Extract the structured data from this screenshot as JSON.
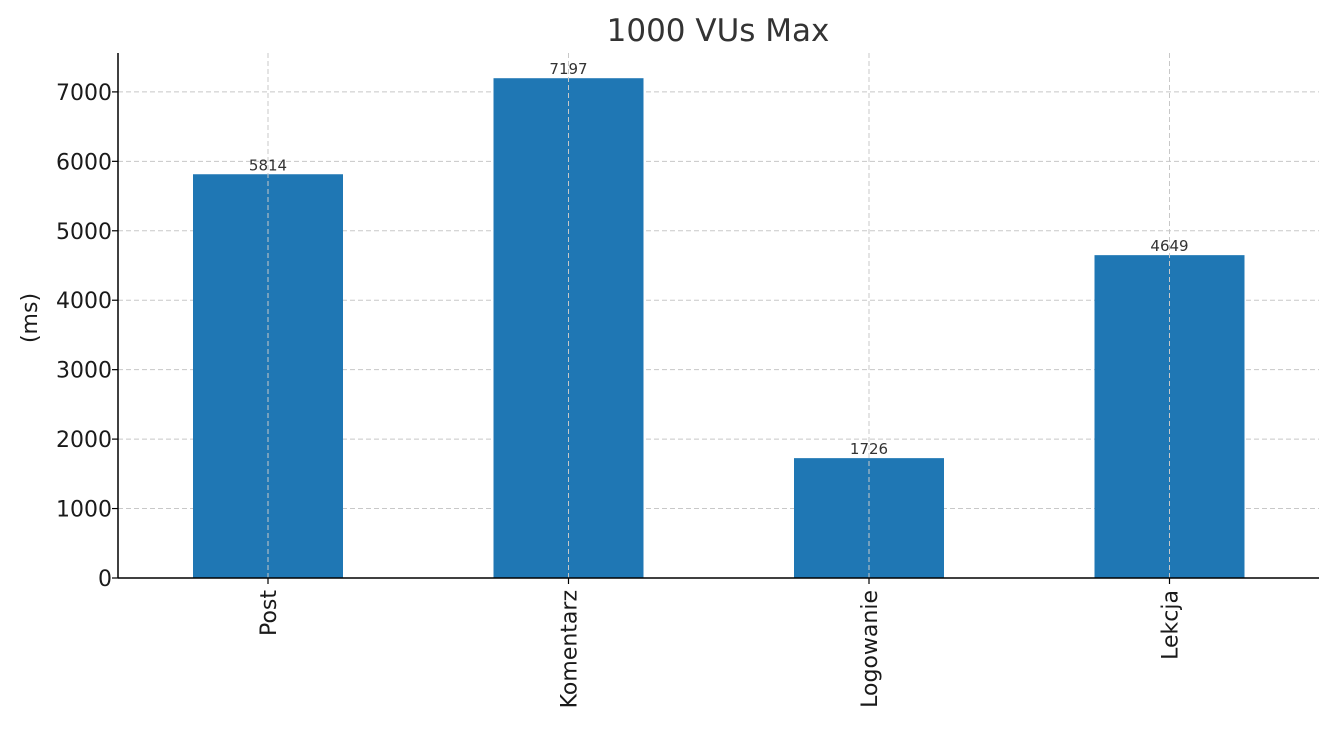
{
  "chart_data": {
    "type": "bar",
    "title": "1000 VUs Max",
    "xlabel": "",
    "ylabel": "(ms)",
    "categories": [
      "Post",
      "Komentarz",
      "Logowanie",
      "Lekcja"
    ],
    "values": [
      5814,
      7197,
      1726,
      4649
    ],
    "value_labels": [
      "5814",
      "7197",
      "1726",
      "4649"
    ],
    "ylim": [
      0,
      7560
    ],
    "yticks": [
      0,
      1000,
      2000,
      3000,
      4000,
      5000,
      6000,
      7000
    ],
    "ytick_labels": [
      "0",
      "1000",
      "2000",
      "3000",
      "4000",
      "5000",
      "6000",
      "7000"
    ],
    "grid": true,
    "bar_color": "#1f77b4"
  }
}
